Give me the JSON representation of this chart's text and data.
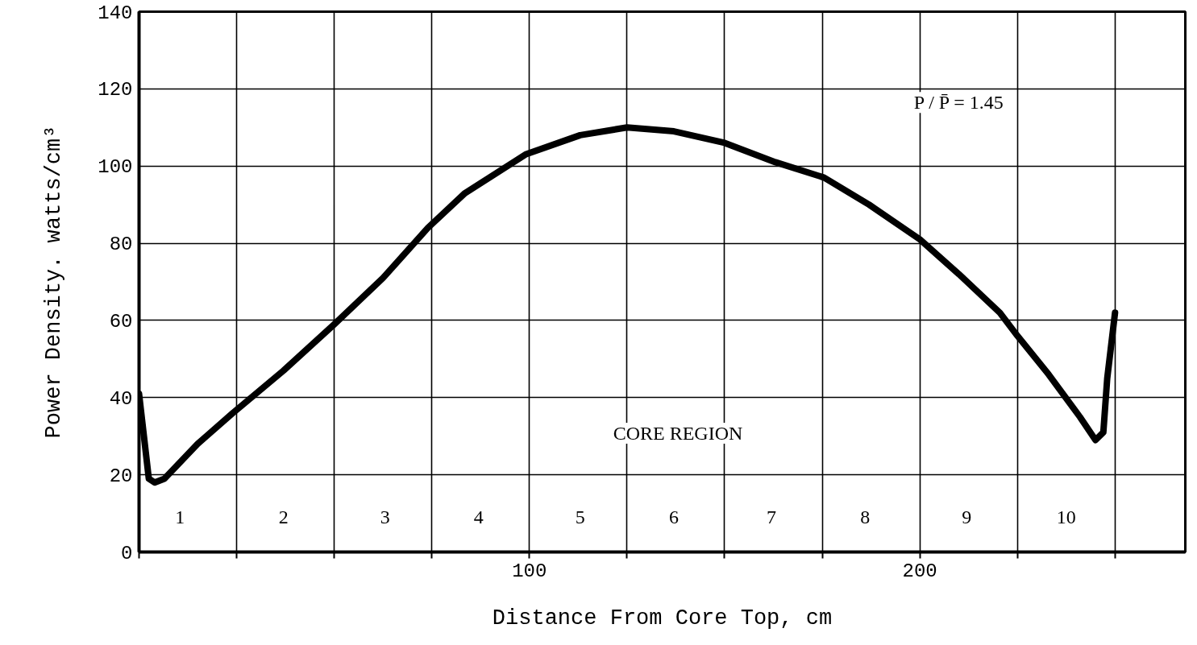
{
  "chart_data": {
    "type": "line",
    "xlabel": "Distance From Core Top, cm",
    "ylabel": "Power Density. watts/cm³",
    "x": [
      0,
      2.5,
      4,
      6.5,
      15,
      24,
      37,
      50,
      62.5,
      74,
      83.5,
      99,
      113,
      125,
      137,
      150,
      163,
      175.5,
      187,
      200,
      210,
      220.5,
      225,
      233,
      241,
      245,
      247,
      248,
      250
    ],
    "values": [
      41,
      19,
      18,
      19,
      28,
      36,
      47,
      59,
      71,
      84,
      93,
      103,
      108,
      110,
      109,
      106,
      101,
      97,
      90,
      81,
      72,
      62,
      56,
      46,
      35,
      29,
      31,
      45,
      62
    ],
    "color": "#000000",
    "xlim": [
      0,
      268
    ],
    "ylim": [
      0,
      140
    ],
    "xticks": [
      {
        "value": 0,
        "label": null
      },
      {
        "value": 25,
        "label": null
      },
      {
        "value": 50,
        "label": null
      },
      {
        "value": 75,
        "label": null
      },
      100,
      {
        "value": 125,
        "label": null
      },
      {
        "value": 150,
        "label": null
      },
      {
        "value": 175,
        "label": null
      },
      200,
      {
        "value": 225,
        "label": null
      },
      {
        "value": 250,
        "label": null
      }
    ],
    "yticks": [
      0,
      20,
      40,
      60,
      80,
      100,
      120,
      140
    ],
    "grid": true,
    "annotations": [
      {
        "text": "1",
        "x": 10.5,
        "y": 9
      },
      {
        "text": "2",
        "x": 37,
        "y": 9
      },
      {
        "text": "3",
        "x": 63,
        "y": 9
      },
      {
        "text": "4",
        "x": 87,
        "y": 9
      },
      {
        "text": "5",
        "x": 113,
        "y": 9
      },
      {
        "text": "6",
        "x": 137,
        "y": 9
      },
      {
        "text": "7",
        "x": 162,
        "y": 9
      },
      {
        "text": "8",
        "x": 186,
        "y": 9
      },
      {
        "text": "9",
        "x": 212,
        "y": 9
      },
      {
        "text": "10",
        "x": 237.5,
        "y": 9
      },
      "CORE REGION",
      "P / P̄ = 1.45"
    ]
  }
}
